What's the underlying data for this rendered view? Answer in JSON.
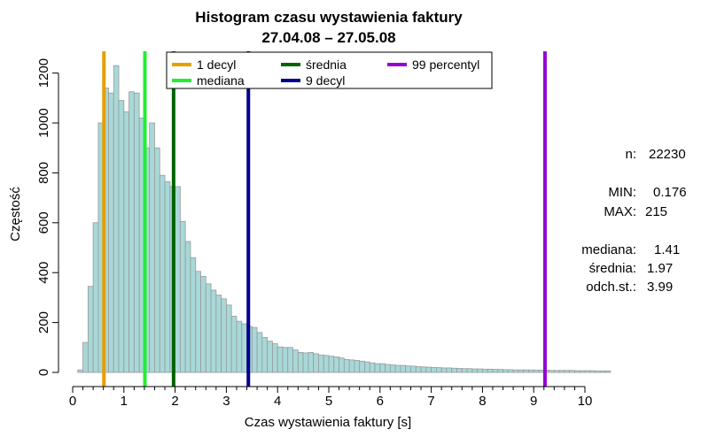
{
  "chart_data": {
    "type": "bar",
    "title": "Histogram czasu wystawienia faktury",
    "subtitle": "27.04.08 – 27.05.08",
    "xlabel": "Czas wystawienia faktury [s]",
    "ylabel": "Częstość",
    "xlim": [
      0,
      10.4
    ],
    "ylim": [
      0,
      1260
    ],
    "x_ticks": [
      0,
      1,
      2,
      3,
      4,
      5,
      6,
      7,
      8,
      9,
      10
    ],
    "x_minor_step": 0.2,
    "y_ticks": [
      0,
      200,
      400,
      600,
      800,
      1000,
      1200
    ],
    "bin_width": 0.1,
    "bin_start": 0.1,
    "counts": [
      10,
      120,
      345,
      600,
      1000,
      1140,
      1120,
      1230,
      1090,
      1045,
      1125,
      1120,
      1020,
      900,
      1000,
      900,
      790,
      765,
      745,
      745,
      605,
      525,
      460,
      405,
      385,
      355,
      330,
      310,
      295,
      270,
      225,
      205,
      195,
      185,
      180,
      160,
      140,
      125,
      115,
      102,
      100,
      100,
      90,
      80,
      78,
      80,
      75,
      70,
      68,
      65,
      62,
      58,
      52,
      50,
      48,
      45,
      42,
      38,
      35,
      35,
      32,
      30,
      28,
      28,
      26,
      25,
      23,
      22,
      21,
      20,
      19,
      18,
      18,
      17,
      16,
      15,
      15,
      14,
      14,
      13,
      13,
      12,
      12,
      11,
      11,
      10,
      10,
      10,
      10,
      9,
      9,
      9,
      8,
      8,
      8,
      8,
      8,
      7,
      7,
      7,
      7,
      6,
      6,
      6
    ],
    "vlines": [
      {
        "name": "1 decyl",
        "x": 0.61,
        "color": "#e69f00"
      },
      {
        "name": "mediana",
        "x": 1.41,
        "color": "#22ee33"
      },
      {
        "name": "średnia",
        "x": 1.97,
        "color": "#006400"
      },
      {
        "name": "9 decyl",
        "x": 3.43,
        "color": "#00008b"
      },
      {
        "name": "99 percentyl",
        "x": 9.22,
        "color": "#9400d3"
      }
    ],
    "legend": {
      "position": "top",
      "entries": [
        "1 decyl",
        "mediana",
        "średnia",
        "9 decyl",
        "99 percentyl"
      ]
    },
    "bar_fill": "#a8d8d8",
    "bar_stroke": "#999999",
    "grid": false
  },
  "stats": {
    "n_label": "n:",
    "n_value": "22230",
    "min_label": "MIN:",
    "min_value": "0.176",
    "max_label": "MAX:",
    "max_value": "215",
    "median_label": "mediana:",
    "median_value": "1.41",
    "mean_label": "średnia:",
    "mean_value": "1.97",
    "sd_label": "odch.st.:",
    "sd_value": "3.99"
  }
}
